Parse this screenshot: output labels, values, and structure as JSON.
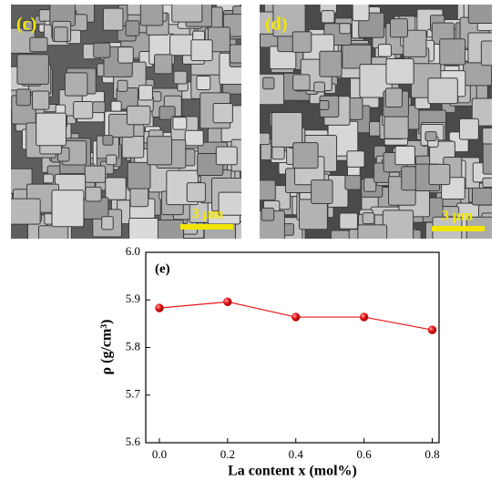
{
  "panels": [
    {
      "label": "(c)",
      "scale_bar": "3 μm"
    },
    {
      "label": "(d)",
      "scale_bar": "3 μm"
    }
  ],
  "chart_data": {
    "type": "line",
    "panel_label": "(e)",
    "x_label": "La content x (mol%)",
    "y_label": "ρ (g/cm³)",
    "x": [
      0,
      0.2,
      0.4,
      0.6,
      0.8
    ],
    "series": [
      {
        "color": "#e8191a",
        "values": [
          5.883,
          5.896,
          5.864,
          5.864,
          5.837
        ]
      }
    ],
    "xlim": [
      -0.04,
      0.82
    ],
    "xticks": [
      {
        "value": 0,
        "label": "0.0"
      },
      0.2,
      0.4,
      0.6,
      0.8
    ],
    "ylim": [
      5.6,
      6.0
    ],
    "yticks": [
      5.6,
      5.7,
      5.8,
      5.9,
      {
        "value": 6,
        "label": "6.0"
      }
    ]
  }
}
